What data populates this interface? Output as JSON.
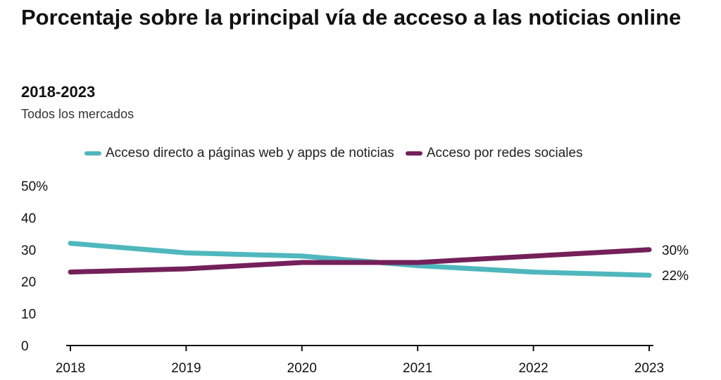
{
  "chart_data": {
    "type": "line",
    "title": "Porcentaje sobre la principal vía de acceso a las noticias online",
    "subtitle": "2018-2023",
    "note": "Todos los mercados",
    "categories": [
      "2018",
      "2019",
      "2020",
      "2021",
      "2022",
      "2023"
    ],
    "y_ticks": [
      "0",
      "10",
      "20",
      "30",
      "40",
      "50%"
    ],
    "ylim": [
      0,
      50
    ],
    "series": [
      {
        "name": "Acceso directo a páginas web y apps de noticias",
        "color": "#4fb7bd",
        "values": [
          32,
          29,
          28,
          25,
          23,
          22
        ],
        "end_label": "22%"
      },
      {
        "name": "Acceso por redes sociales",
        "color": "#74205a",
        "values": [
          23,
          24,
          26,
          26,
          28,
          30
        ],
        "end_label": "30%"
      }
    ],
    "legend_position": "top",
    "grid": false
  }
}
